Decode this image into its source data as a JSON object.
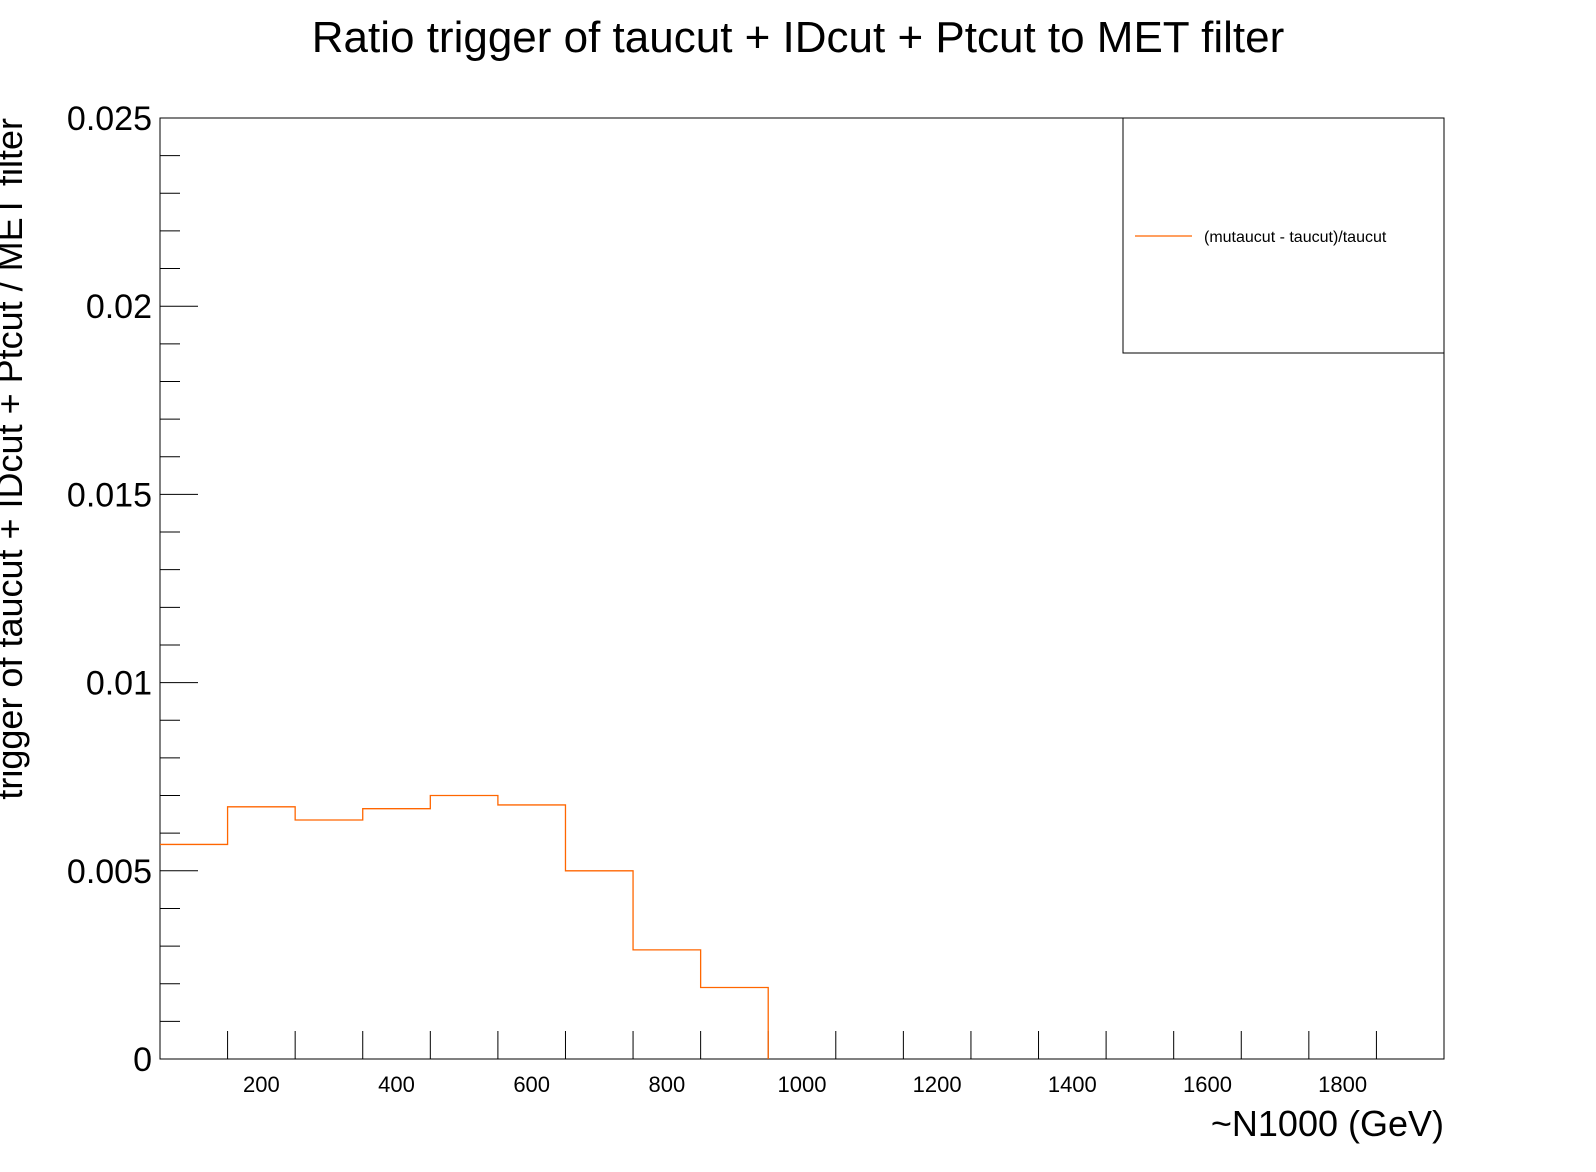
{
  "chart_data": {
    "type": "line",
    "title": "Ratio trigger of taucut + IDcut + Ptcut to MET filter",
    "xlabel": "~N1000 (GeV)",
    "ylabel": "trigger of taucut + IDcut + Ptcut / MET filter",
    "xlim": [
      50,
      1950
    ],
    "ylim": [
      0,
      0.025
    ],
    "x_ticks": [
      200,
      400,
      600,
      800,
      1000,
      1200,
      1400,
      1600,
      1800
    ],
    "y_ticks": [
      "0",
      "0.005",
      "0.01",
      "0.015",
      "0.02",
      "0.025"
    ],
    "grid": false,
    "legend_position": "top-right",
    "series": [
      {
        "name": "(mutaucut - taucut)/taucut",
        "color": "#ff6600",
        "style": "step",
        "bin_edges": [
          50,
          150,
          250,
          350,
          450,
          550,
          650,
          750,
          850,
          950
        ],
        "values": [
          0.0057,
          0.0067,
          0.00635,
          0.00665,
          0.007,
          0.00675,
          0.005,
          0.0029,
          0.0019
        ]
      }
    ]
  }
}
